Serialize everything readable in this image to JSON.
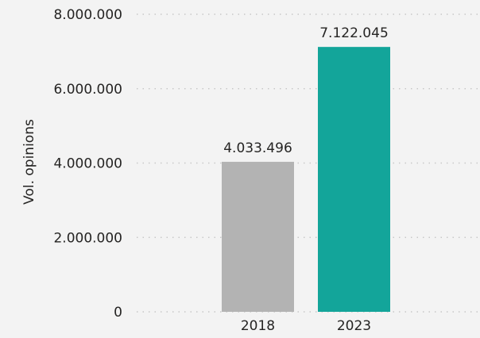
{
  "chart_data": {
    "type": "bar",
    "title": "",
    "xlabel": "",
    "ylabel": "Vol. opinions",
    "categories": [
      "2018",
      "2023"
    ],
    "values": [
      4033496,
      7122045
    ],
    "value_labels": [
      "4.033.496",
      "7.122.045"
    ],
    "bar_colors": [
      "#b3b3b3",
      "#13a59a"
    ],
    "ylim": [
      0,
      8000000
    ],
    "y_ticks": [
      0,
      2000000,
      4000000,
      6000000,
      8000000
    ],
    "y_tick_labels": [
      "0",
      "2.000.000",
      "4.000.000",
      "6.000.000",
      "8.000.000"
    ],
    "grid": true,
    "legend": "none"
  }
}
